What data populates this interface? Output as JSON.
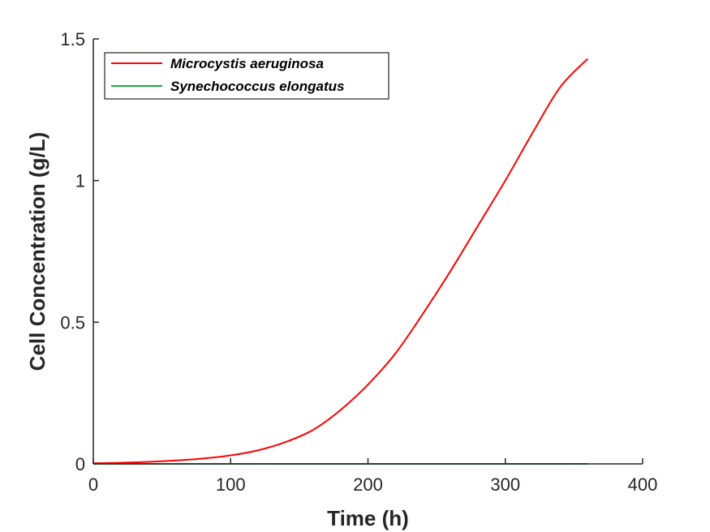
{
  "chart_data": {
    "type": "line",
    "xlabel": "Time (h)",
    "ylabel": "Cell Concentration (g/L)",
    "xlim": [
      0,
      400
    ],
    "ylim": [
      0,
      1.5
    ],
    "xticks": [
      0,
      100,
      200,
      300,
      400
    ],
    "yticks": [
      0,
      0.5,
      1,
      1.5
    ],
    "xtick_labels": [
      "0",
      "100",
      "200",
      "300",
      "400"
    ],
    "ytick_labels": [
      "0",
      "0.5",
      "1",
      "1.5"
    ],
    "grid": false,
    "legend_position": "top-left",
    "series": [
      {
        "name": "Microcystis aeruginosa",
        "color": "#ff0000",
        "x": [
          0,
          20,
          40,
          60,
          80,
          100,
          120,
          140,
          160,
          180,
          200,
          220,
          240,
          260,
          280,
          300,
          320,
          340,
          360
        ],
        "y": [
          0.002,
          0.004,
          0.007,
          0.012,
          0.019,
          0.03,
          0.048,
          0.077,
          0.12,
          0.19,
          0.28,
          0.39,
          0.53,
          0.68,
          0.84,
          1.0,
          1.17,
          1.33,
          1.43
        ]
      },
      {
        "name": "Synechococcus elongatus",
        "color": "#1aaa3a",
        "x": [
          0,
          60,
          120,
          180,
          240,
          300,
          360
        ],
        "y": [
          0,
          0,
          0,
          0,
          0,
          0,
          0
        ]
      }
    ]
  }
}
